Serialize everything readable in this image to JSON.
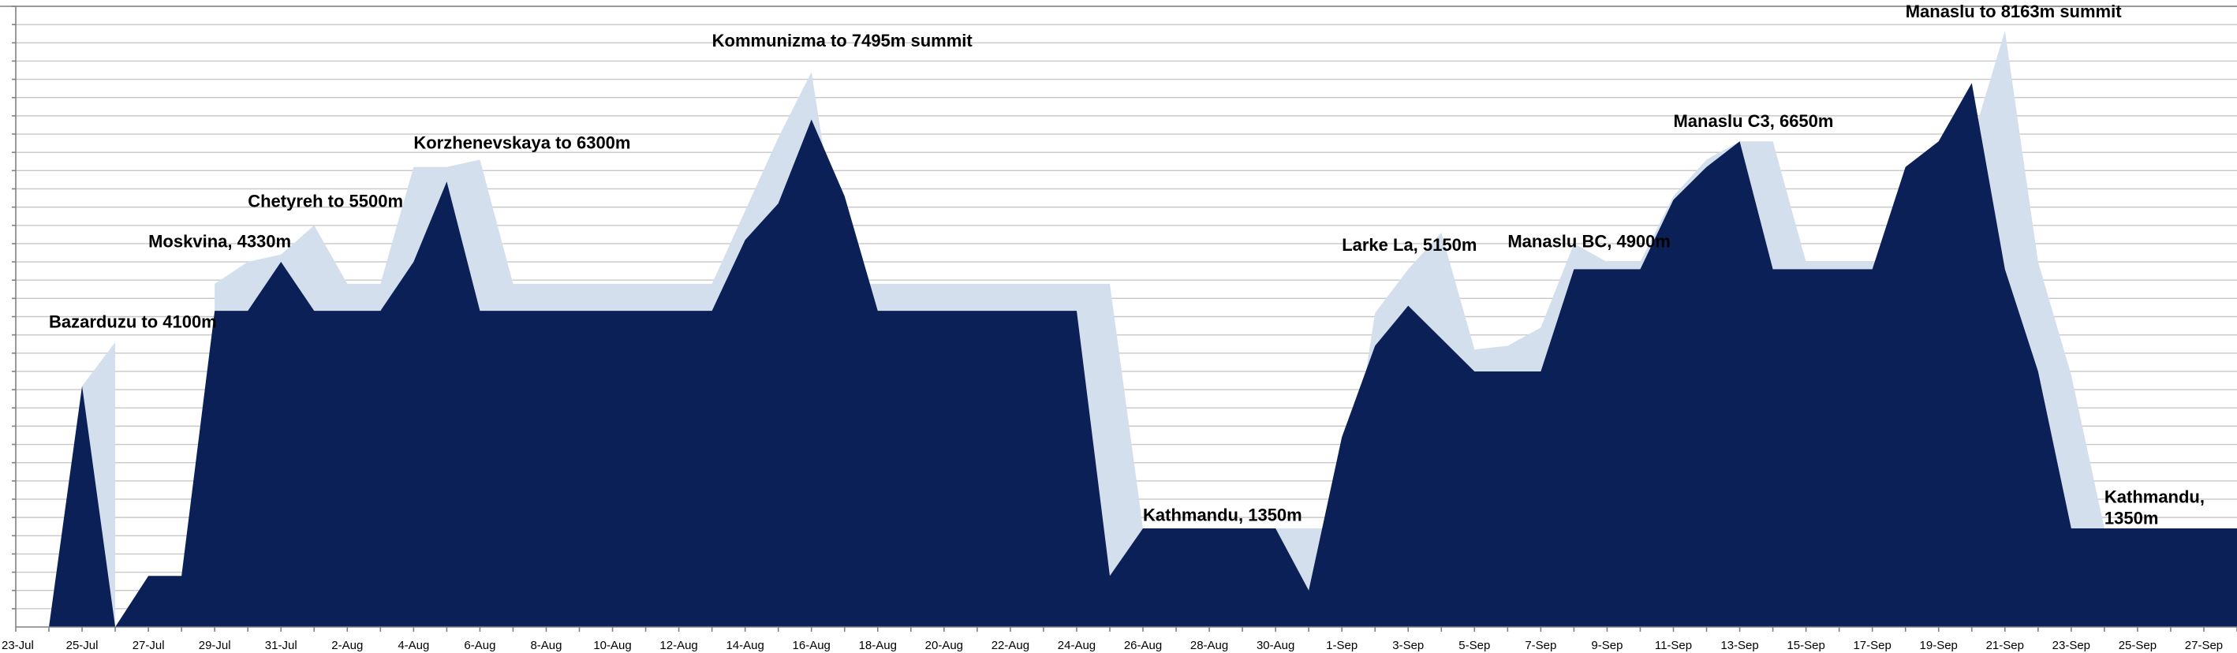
{
  "chart_data": {
    "type": "area",
    "title": "",
    "xlabel": "",
    "ylabel": "",
    "ylim": [
      0,
      8500
    ],
    "grid": true,
    "legend": "none",
    "x_tick_labels": [
      "23-Jul",
      "25-Jul",
      "27-Jul",
      "29-Jul",
      "31-Jul",
      "2-Aug",
      "4-Aug",
      "6-Aug",
      "8-Aug",
      "10-Aug",
      "12-Aug",
      "14-Aug",
      "16-Aug",
      "18-Aug",
      "20-Aug",
      "22-Aug",
      "24-Aug",
      "26-Aug",
      "28-Aug",
      "30-Aug",
      "1-Sep",
      "3-Sep",
      "5-Sep",
      "7-Sep",
      "9-Sep",
      "11-Sep",
      "13-Sep",
      "15-Sep",
      "17-Sep",
      "19-Sep",
      "21-Sep",
      "23-Sep",
      "25-Sep",
      "27-Sep"
    ],
    "x": [
      "23-Jul",
      "24-Jul",
      "25-Jul",
      "26-Jul",
      "27-Jul",
      "28-Jul",
      "29-Jul",
      "30-Jul",
      "31-Jul",
      "1-Aug",
      "2-Aug",
      "3-Aug",
      "4-Aug",
      "5-Aug",
      "6-Aug",
      "7-Aug",
      "8-Aug",
      "9-Aug",
      "10-Aug",
      "11-Aug",
      "12-Aug",
      "13-Aug",
      "14-Aug",
      "15-Aug",
      "16-Aug",
      "17-Aug",
      "18-Aug",
      "19-Aug",
      "20-Aug",
      "21-Aug",
      "22-Aug",
      "23-Aug",
      "24-Aug",
      "25-Aug",
      "26-Aug",
      "27-Aug",
      "28-Aug",
      "29-Aug",
      "30-Aug",
      "31-Aug",
      "1-Sep",
      "2-Sep",
      "3-Sep",
      "4-Sep",
      "5-Sep",
      "6-Sep",
      "7-Sep",
      "8-Sep",
      "9-Sep",
      "10-Sep",
      "11-Sep",
      "12-Sep",
      "13-Sep",
      "14-Sep",
      "15-Sep",
      "16-Sep",
      "17-Sep",
      "18-Sep",
      "19-Sep",
      "20-Sep",
      "21-Sep",
      "22-Sep",
      "23-Sep",
      "24-Sep",
      "25-Sep",
      "26-Sep",
      "27-Sep",
      "28-Sep"
    ],
    "series": [
      {
        "values": [
          null,
          null,
          3300,
          3900,
          null,
          null,
          4700,
          5000,
          5100,
          5500,
          4700,
          4700,
          6300,
          6300,
          6400,
          4700,
          4700,
          4700,
          4700,
          4700,
          4700,
          4700,
          5700,
          6700,
          7600,
          4700,
          4700,
          4700,
          4700,
          4700,
          4700,
          4700,
          4700,
          4700,
          1350,
          1350,
          1350,
          1350,
          1350,
          1350,
          1350,
          4300,
          4900,
          5400,
          3800,
          3850,
          4100,
          5250,
          5000,
          5000,
          5900,
          6400,
          6650,
          6650,
          5000,
          5000,
          5000,
          5000,
          6400,
          6650,
          8163,
          5000,
          3450,
          1350,
          1350,
          1350,
          1350,
          1350
        ],
        "color": "#d3dfec"
      },
      {
        "values": [
          null,
          0,
          3300,
          0,
          700,
          700,
          4330,
          4330,
          5000,
          4330,
          4330,
          4330,
          5000,
          6100,
          4330,
          4330,
          4330,
          4330,
          4330,
          4330,
          4330,
          4330,
          5300,
          5800,
          6950,
          5900,
          4330,
          4330,
          4330,
          4330,
          4330,
          4330,
          4330,
          700,
          1350,
          1350,
          1350,
          1350,
          1350,
          500,
          2600,
          3850,
          4400,
          3950,
          3500,
          3500,
          3500,
          4900,
          4900,
          4900,
          5850,
          6300,
          6650,
          4900,
          4900,
          4900,
          4900,
          6300,
          6650,
          7450,
          4900,
          3500,
          1350,
          1350,
          1350,
          1350,
          1350,
          1350
        ],
        "color": "#0a2057"
      }
    ],
    "annotations": [
      {
        "text": "Bazarduzu to 4100m",
        "x": "24-Jul",
        "y": 4100
      },
      {
        "text": "Moskvina, 4330m",
        "x": "27-Jul",
        "y": 5200
      },
      {
        "text": "Chetyreh to 5500m",
        "x": "30-Jul",
        "y": 5750
      },
      {
        "text": "Korzhenevskaya to 6300m",
        "x": "4-Aug",
        "y": 6550
      },
      {
        "text": "Kommunizma to 7495m summit",
        "x": "13-Aug",
        "y": 7950
      },
      {
        "text": "Kathmandu, 1350m",
        "x": "26-Aug",
        "y": 1450
      },
      {
        "text": "Larke La, 5150m",
        "x": "1-Sep",
        "y": 5150
      },
      {
        "text": "Manaslu BC, 4900m",
        "x": "6-Sep",
        "y": 5200
      },
      {
        "text": "Manaslu C3, 6650m",
        "x": "11-Sep",
        "y": 6850
      },
      {
        "text": "Manaslu to 8163m summit",
        "x": "18-Sep",
        "y": 8350
      },
      {
        "text": "Kathmandu,\n1350m",
        "x": "24-Sep",
        "y": 1700
      }
    ]
  }
}
